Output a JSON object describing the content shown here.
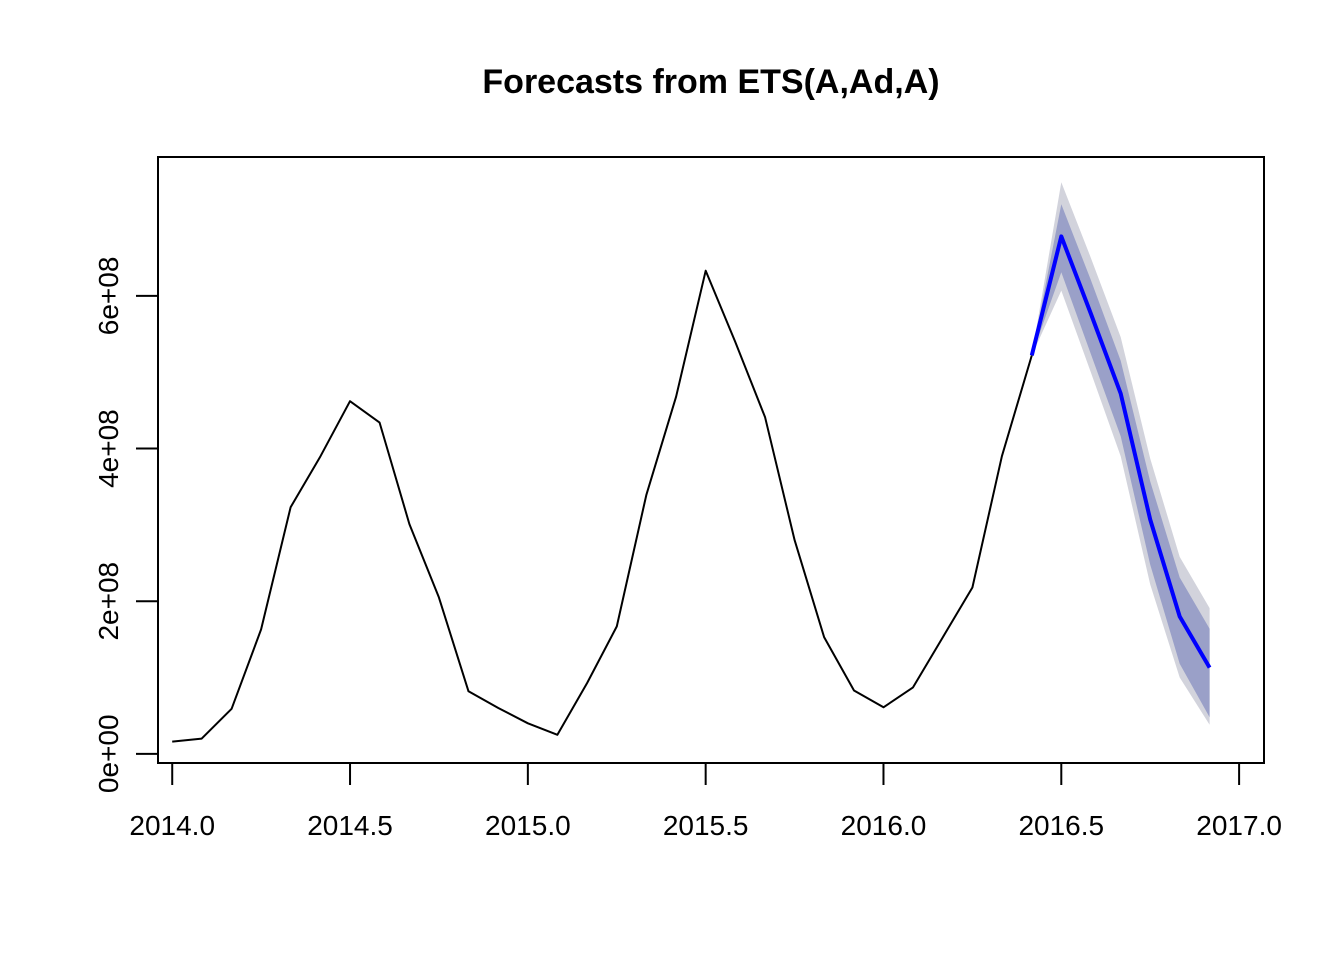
{
  "chart_data": {
    "type": "line",
    "title": "Forecasts from ETS(A,Ad,A)",
    "xlabel": "",
    "ylabel": "",
    "xlim": [
      2013.96,
      2017.07
    ],
    "ylim": [
      -12000000,
      782000000
    ],
    "x_ticks": [
      2014.0,
      2014.5,
      2015.0,
      2015.5,
      2016.0,
      2016.5,
      2017.0
    ],
    "x_tick_labels": [
      "2014.0",
      "2014.5",
      "2015.0",
      "2015.5",
      "2016.0",
      "2016.5",
      "2017.0"
    ],
    "y_ticks": [
      0,
      200000000,
      400000000,
      600000000
    ],
    "y_tick_labels": [
      "0e+00",
      "2e+08",
      "4e+08",
      "6e+08"
    ],
    "grid": false,
    "colors": {
      "history": "#000000",
      "forecast": "#0000ff",
      "band_80": "#9aa0c8",
      "band_95": "#d2d3dc"
    },
    "series": [
      {
        "x": [
          2014.0,
          2014.083,
          2014.167,
          2014.25,
          2014.333,
          2014.417,
          2014.5,
          2014.583,
          2014.667,
          2014.75,
          2014.833,
          2014.917,
          2015.0,
          2015.083,
          2015.167,
          2015.25,
          2015.333,
          2015.417,
          2015.5,
          2015.583,
          2015.667,
          2015.75,
          2015.833,
          2015.917,
          2016.0,
          2016.083,
          2016.167,
          2016.25,
          2016.333,
          2016.417
        ],
        "values": [
          16000000,
          20000000,
          59000000,
          163000000,
          323000000,
          390000000,
          462000000,
          434000000,
          301000000,
          205000000,
          82000000,
          60000000,
          40000000,
          25000000,
          93000000,
          167000000,
          339000000,
          468000000,
          633000000,
          540000000,
          441000000,
          280000000,
          153000000,
          83000000,
          61000000,
          87000000,
          153000000,
          218000000,
          390000000,
          522000000
        ]
      },
      {
        "x": [
          2016.417,
          2016.5,
          2016.583,
          2016.667,
          2016.75,
          2016.833,
          2016.917
        ],
        "values": [
          522000000,
          678000000,
          577000000,
          472000000,
          307000000,
          180000000,
          113000000
        ],
        "lo80": [
          522000000,
          631000000,
          524000000,
          416000000,
          248000000,
          118000000,
          48000000
        ],
        "hi80": [
          522000000,
          720000000,
          621000000,
          515000000,
          357000000,
          231000000,
          164000000
        ],
        "lo95": [
          522000000,
          607000000,
          500000000,
          390000000,
          222000000,
          100000000,
          38000000
        ],
        "hi95": [
          522000000,
          749000000,
          650000000,
          546000000,
          387000000,
          258000000,
          191000000
        ]
      }
    ]
  }
}
